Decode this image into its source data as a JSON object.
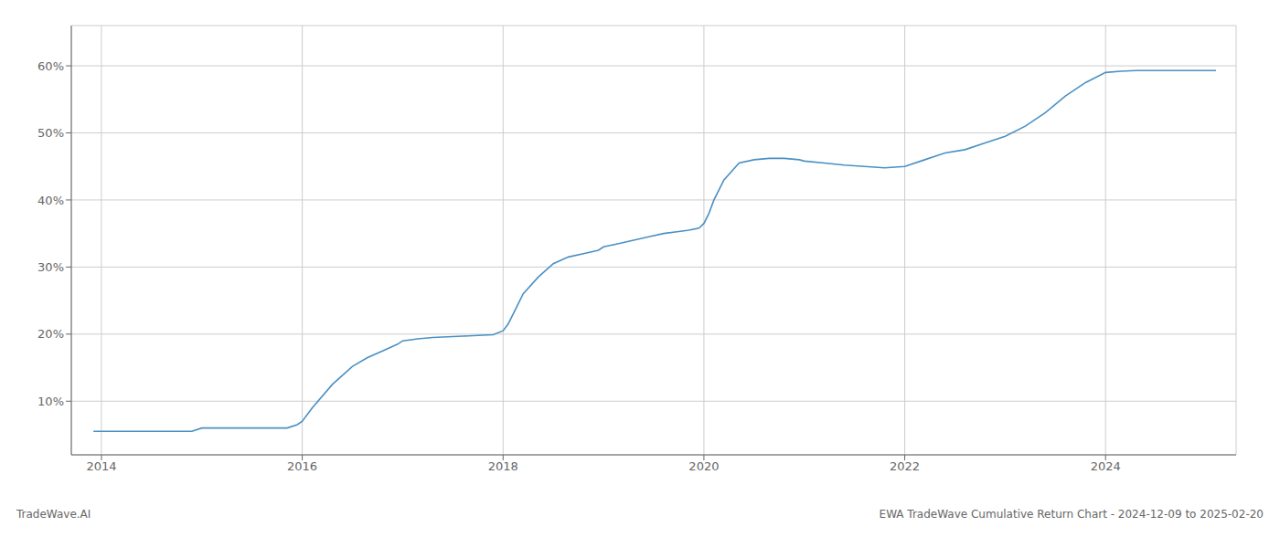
{
  "chart_data": {
    "type": "line",
    "annotations": [
      "TradeWave.AI",
      "EWA TradeWave Cumulative Return Chart - 2024-12-09 to 2025-02-20"
    ],
    "color": "#4a90c4",
    "x": [
      2013.92,
      2014.0,
      2014.1,
      2014.3,
      2014.5,
      2014.7,
      2014.9,
      2015.0,
      2015.05,
      2015.1,
      2015.3,
      2015.5,
      2015.7,
      2015.85,
      2015.95,
      2016.0,
      2016.1,
      2016.3,
      2016.5,
      2016.65,
      2016.8,
      2016.95,
      2017.0,
      2017.15,
      2017.3,
      2017.45,
      2017.6,
      2017.75,
      2017.9,
      2018.0,
      2018.05,
      2018.1,
      2018.2,
      2018.35,
      2018.5,
      2018.65,
      2018.8,
      2018.95,
      2019.0,
      2019.15,
      2019.3,
      2019.45,
      2019.6,
      2019.75,
      2019.85,
      2019.95,
      2020.0,
      2020.05,
      2020.1,
      2020.2,
      2020.35,
      2020.5,
      2020.65,
      2020.8,
      2020.95,
      2021.0,
      2021.2,
      2021.4,
      2021.6,
      2021.8,
      2022.0,
      2022.2,
      2022.4,
      2022.6,
      2022.8,
      2023.0,
      2023.2,
      2023.4,
      2023.6,
      2023.8,
      2024.0,
      2024.15,
      2024.3,
      2024.5,
      2024.7,
      2024.9,
      2025.1
    ],
    "values": [
      5.5,
      5.5,
      5.5,
      5.5,
      5.5,
      5.5,
      5.5,
      6.0,
      6.0,
      6.0,
      6.0,
      6.0,
      6.0,
      6.0,
      6.5,
      7.0,
      9.0,
      12.5,
      15.2,
      16.5,
      17.5,
      18.5,
      19.0,
      19.3,
      19.5,
      19.6,
      19.7,
      19.8,
      19.9,
      20.5,
      21.5,
      23.0,
      26.0,
      28.5,
      30.5,
      31.5,
      32.0,
      32.5,
      33.0,
      33.5,
      34.0,
      34.5,
      35.0,
      35.3,
      35.5,
      35.8,
      36.5,
      38.0,
      40.0,
      43.0,
      45.5,
      46.0,
      46.2,
      46.2,
      46.0,
      45.8,
      45.5,
      45.2,
      45.0,
      44.8,
      45.0,
      46.0,
      47.0,
      47.5,
      48.5,
      49.5,
      51.0,
      53.0,
      55.5,
      57.5,
      59.0,
      59.2,
      59.3,
      59.3,
      59.3,
      59.3,
      59.3
    ],
    "xlim": [
      2013.7,
      2025.3
    ],
    "ylim": [
      2,
      66
    ],
    "xticks": [
      2014,
      2016,
      2018,
      2020,
      2022,
      2024
    ],
    "yticks": [
      {
        "value": 10,
        "label": "10%"
      },
      {
        "value": 20,
        "label": "20%"
      },
      {
        "value": 30,
        "label": "30%"
      },
      {
        "value": 40,
        "label": "40%"
      },
      {
        "value": 50,
        "label": "50%"
      },
      {
        "value": 60,
        "label": "60%"
      }
    ],
    "grid": true
  }
}
